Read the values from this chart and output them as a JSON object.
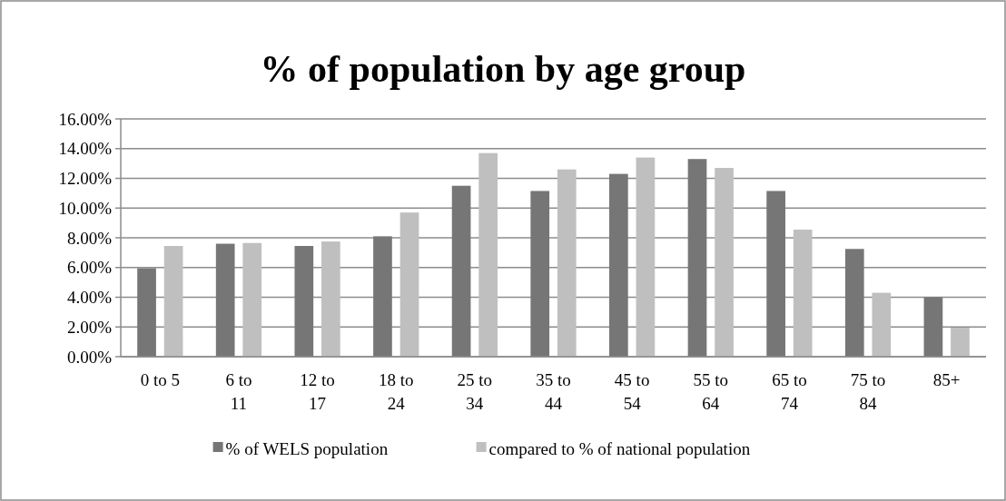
{
  "chart_data": {
    "type": "bar",
    "title": "% of population by age group",
    "categories": [
      "0 to 5",
      "6 to 11",
      "12 to 17",
      "18 to 24",
      "25 to 34",
      "35 to 44",
      "45 to 54",
      "55 to 64",
      "65 to 74",
      "75 to 84",
      "85+"
    ],
    "series": [
      {
        "name": "% of WELS population",
        "color": "#767676",
        "values": [
          5.95,
          7.6,
          7.45,
          8.1,
          11.5,
          11.15,
          12.3,
          13.3,
          11.15,
          7.25,
          4.0
        ]
      },
      {
        "name": "compared to % of national population",
        "color": "#bfbfbf",
        "values": [
          7.45,
          7.65,
          7.75,
          9.7,
          13.7,
          12.6,
          13.4,
          12.7,
          8.55,
          4.3,
          1.95
        ]
      }
    ],
    "ylim": [
      0,
      16
    ],
    "yticks": [
      {
        "value": 0,
        "label": "0.00%"
      },
      {
        "value": 2,
        "label": "2.00%"
      },
      {
        "value": 4,
        "label": "4.00%"
      },
      {
        "value": 6,
        "label": "6.00%"
      },
      {
        "value": 8,
        "label": "8.00%"
      },
      {
        "value": 10,
        "label": "10.00%"
      },
      {
        "value": 12,
        "label": "12.00%"
      },
      {
        "value": 14,
        "label": "14.00%"
      },
      {
        "value": 16,
        "label": "16.00%"
      }
    ],
    "grid": "y",
    "legend": "bottom"
  }
}
